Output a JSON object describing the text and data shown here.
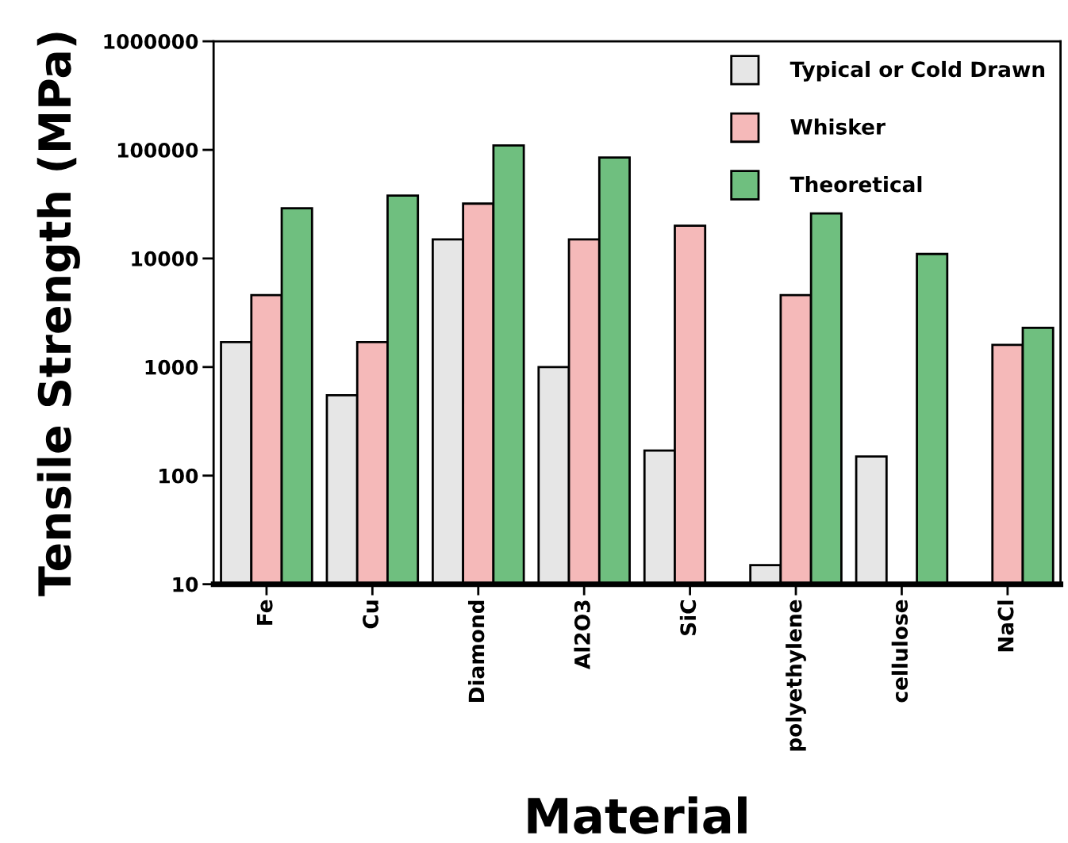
{
  "chart_data": {
    "type": "bar",
    "xlabel": "Material",
    "ylabel": "Tensile Strength (MPa)",
    "categories": [
      "Fe",
      "Cu",
      "Diamond",
      "Al2O3",
      "SiC",
      "polyethylene",
      "cellulose",
      "NaCl"
    ],
    "series": [
      {
        "name": "Typical or Cold Drawn",
        "color": "#e6e6e6",
        "values": [
          1700,
          550,
          15000,
          1000,
          170,
          15,
          150,
          null
        ]
      },
      {
        "name": "Whisker",
        "color": "#f5b9b9",
        "values": [
          4600,
          1700,
          32000,
          15000,
          20000,
          4600,
          null,
          1600
        ]
      },
      {
        "name": "Theoretical",
        "color": "#6fbf7f",
        "values": [
          29000,
          38000,
          110000,
          85000,
          null,
          26000,
          11000,
          2300
        ]
      }
    ],
    "log": "y",
    "ylim": [
      10,
      1000000
    ],
    "yticks": [
      10,
      100,
      1000,
      10000,
      100000,
      1000000
    ],
    "grid": false,
    "legend": "top right"
  }
}
